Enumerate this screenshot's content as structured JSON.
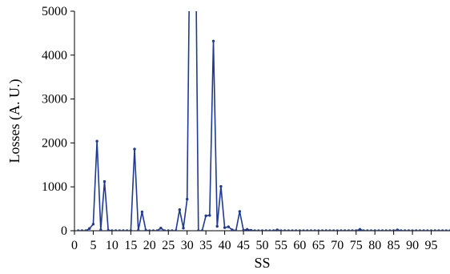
{
  "chart_data": {
    "type": "line",
    "title": "",
    "xlabel": "SS",
    "ylabel": "Losses (A. U.)",
    "xlim": [
      0,
      100
    ],
    "ylim": [
      0,
      5000
    ],
    "grid": false,
    "legend": "none",
    "line_color": "#1f3a93",
    "x_ticks": [
      0,
      5,
      10,
      15,
      20,
      25,
      30,
      35,
      40,
      45,
      50,
      55,
      60,
      65,
      70,
      75,
      80,
      85,
      90,
      95
    ],
    "x_tick_labels": [
      "0",
      "5",
      "10",
      "15",
      "20",
      "25",
      "30",
      "35",
      "40",
      "45",
      "50",
      "55",
      "60",
      "65",
      "70",
      "75",
      "80",
      "85",
      "90",
      "95"
    ],
    "y_ticks": [
      0,
      1000,
      2000,
      3000,
      4000,
      5000
    ],
    "y_tick_labels": [
      "0",
      "1000",
      "2000",
      "3000",
      "4000",
      "5000"
    ],
    "series": [
      {
        "x": [
          1,
          2,
          3,
          4,
          5,
          6,
          7,
          8,
          9,
          10,
          11,
          12,
          13,
          14,
          15,
          16,
          17,
          18,
          19,
          20,
          21,
          22,
          23,
          24,
          25,
          26,
          27,
          28,
          29,
          30,
          31,
          32,
          33,
          34,
          35,
          36,
          37,
          38,
          39,
          40,
          41,
          42,
          43,
          44,
          45,
          46,
          47,
          48,
          49,
          50,
          51,
          52,
          53,
          54,
          55,
          56,
          57,
          58,
          59,
          60,
          61,
          62,
          63,
          64,
          65,
          66,
          67,
          68,
          69,
          70,
          71,
          72,
          73,
          74,
          75,
          76,
          77,
          78,
          79,
          80,
          81,
          82,
          83,
          84,
          85,
          86,
          87,
          88,
          89,
          90,
          91,
          92,
          93,
          94,
          95,
          96,
          97,
          98,
          99,
          100
        ],
        "y": [
          0,
          0,
          0,
          50,
          150,
          2040,
          20,
          1120,
          10,
          0,
          0,
          0,
          0,
          0,
          0,
          1860,
          10,
          430,
          10,
          0,
          0,
          0,
          60,
          0,
          0,
          0,
          0,
          480,
          60,
          720,
          9000,
          9000,
          0,
          0,
          340,
          350,
          4320,
          100,
          1010,
          70,
          90,
          20,
          0,
          440,
          10,
          30,
          10,
          0,
          0,
          0,
          0,
          0,
          0,
          20,
          0,
          0,
          0,
          0,
          0,
          0,
          0,
          0,
          0,
          0,
          0,
          0,
          0,
          0,
          0,
          0,
          0,
          0,
          0,
          0,
          0,
          30,
          0,
          0,
          0,
          0,
          0,
          0,
          0,
          0,
          0,
          20,
          0,
          0,
          0,
          0,
          0,
          0,
          0,
          0,
          0,
          0,
          0,
          0,
          0,
          0
        ]
      }
    ]
  }
}
